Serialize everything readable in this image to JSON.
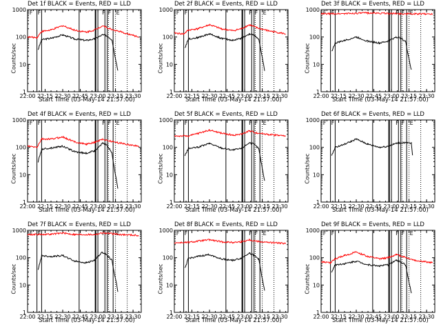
{
  "chart_data": [
    {
      "type": "line",
      "title": "Det 1f BLACK = Events, RED = LLD",
      "xlabel": "Start Time (03-May-14 21:57:00)",
      "ylabel": "Counts/sec",
      "xlim": [
        "22:00",
        "23:37"
      ],
      "ylim": [
        1,
        1000
      ],
      "yscale": "log",
      "x_ticks": [
        "22:00",
        "22:15",
        "22:30",
        "22:45",
        "23:00",
        "23:15",
        "23:30"
      ],
      "y_ticks": [
        "1",
        "10",
        "100",
        "1000"
      ],
      "markers": [
        "F",
        "F",
        "F",
        "F",
        "E"
      ],
      "series": [
        {
          "name": "Events",
          "color": "#000000",
          "x": [
            "22:09",
            "22:12",
            "22:20",
            "22:30",
            "22:40",
            "22:50",
            "22:57",
            "23:04",
            "23:08",
            "23:12",
            "23:17"
          ],
          "values": [
            35,
            80,
            90,
            120,
            85,
            75,
            85,
            120,
            110,
            80,
            6
          ]
        },
        {
          "name": "LLD",
          "color": "#ff0000",
          "x": [
            "22:00",
            "22:08",
            "22:12",
            "22:20",
            "22:30",
            "22:40",
            "22:50",
            "22:57",
            "23:04",
            "23:10",
            "23:20",
            "23:35"
          ],
          "values": [
            100,
            95,
            160,
            180,
            260,
            180,
            150,
            180,
            260,
            200,
            150,
            100
          ]
        }
      ]
    },
    {
      "type": "line",
      "title": "Det 2f BLACK = Events, RED = LLD",
      "xlabel": "Start Time (03-May-14 21:57:00)",
      "ylabel": "Counts/sec",
      "xlim": [
        "22:00",
        "23:37"
      ],
      "ylim": [
        1,
        1000
      ],
      "yscale": "log",
      "x_ticks": [
        "22:00",
        "22:15",
        "22:30",
        "22:45",
        "23:00",
        "23:15",
        "23:30"
      ],
      "y_ticks": [
        "1",
        "10",
        "100",
        "1000"
      ],
      "markers": [
        "F",
        "F",
        "F",
        "F",
        "E"
      ],
      "series": [
        {
          "name": "Events",
          "color": "#000000",
          "x": [
            "22:09",
            "22:12",
            "22:20",
            "22:30",
            "22:40",
            "22:50",
            "22:57",
            "23:04",
            "23:08",
            "23:12",
            "23:17"
          ],
          "values": [
            40,
            85,
            95,
            130,
            90,
            75,
            90,
            130,
            115,
            85,
            6
          ]
        },
        {
          "name": "LLD",
          "color": "#ff0000",
          "x": [
            "22:00",
            "22:08",
            "22:12",
            "22:20",
            "22:30",
            "22:40",
            "22:50",
            "22:57",
            "23:04",
            "23:10",
            "23:20",
            "23:35"
          ],
          "values": [
            140,
            130,
            180,
            200,
            280,
            200,
            170,
            200,
            280,
            220,
            170,
            130
          ]
        }
      ]
    },
    {
      "type": "line",
      "title": "Det 3f BLACK = Events, RED = LLD",
      "xlabel": "Start Time (03-May-14 21:57:00)",
      "ylabel": "Counts/sec",
      "xlim": [
        "22:00",
        "23:37"
      ],
      "ylim": [
        1,
        1000
      ],
      "yscale": "log",
      "x_ticks": [
        "22:00",
        "22:15",
        "22:30",
        "22:45",
        "23:00",
        "23:15",
        "23:30"
      ],
      "y_ticks": [
        "1",
        "10",
        "100",
        "1000"
      ],
      "markers": [
        "F",
        "F",
        "F",
        "F",
        "E"
      ],
      "series": [
        {
          "name": "Events",
          "color": "#000000",
          "x": [
            "22:09",
            "22:12",
            "22:20",
            "22:30",
            "22:40",
            "22:50",
            "22:57",
            "23:04",
            "23:08",
            "23:12",
            "23:17"
          ],
          "values": [
            30,
            60,
            75,
            100,
            70,
            60,
            70,
            100,
            90,
            70,
            6
          ]
        },
        {
          "name": "LLD",
          "color": "#ff0000",
          "x": [
            "22:00",
            "22:20",
            "22:40",
            "23:00",
            "23:20",
            "23:35"
          ],
          "values": [
            700,
            720,
            760,
            720,
            700,
            700
          ]
        }
      ]
    },
    {
      "type": "line",
      "title": "Det 4f BLACK = Events, RED = LLD",
      "xlabel": "Start Time (03-May-14 21:57:00)",
      "ylabel": "Counts/sec",
      "xlim": [
        "22:00",
        "23:37"
      ],
      "ylim": [
        1,
        1000
      ],
      "yscale": "log",
      "x_ticks": [
        "22:00",
        "22:15",
        "22:30",
        "22:45",
        "23:00",
        "23:15",
        "23:30"
      ],
      "y_ticks": [
        "1",
        "10",
        "100",
        "1000"
      ],
      "markers": [
        "F",
        "F",
        "F",
        "F",
        "E"
      ],
      "series": [
        {
          "name": "Events",
          "color": "#000000",
          "x": [
            "22:09",
            "22:12",
            "22:20",
            "22:30",
            "22:40",
            "22:50",
            "22:57",
            "23:04",
            "23:08",
            "23:12",
            "23:17"
          ],
          "values": [
            30,
            85,
            95,
            110,
            70,
            60,
            75,
            140,
            120,
            60,
            3
          ]
        },
        {
          "name": "LLD",
          "color": "#ff0000",
          "x": [
            "22:00",
            "22:08",
            "22:12",
            "22:20",
            "22:30",
            "22:40",
            "22:50",
            "22:57",
            "23:04",
            "23:10",
            "23:20",
            "23:35"
          ],
          "values": [
            110,
            100,
            200,
            200,
            240,
            160,
            130,
            150,
            200,
            170,
            140,
            110
          ]
        }
      ]
    },
    {
      "type": "line",
      "title": "Det 5f BLACK = Events, RED = LLD",
      "xlabel": "Start Time (03-May-14 21:57:00)",
      "ylabel": "Counts/sec",
      "xlim": [
        "22:00",
        "23:37"
      ],
      "ylim": [
        1,
        1000
      ],
      "yscale": "log",
      "x_ticks": [
        "22:00",
        "22:15",
        "22:30",
        "22:45",
        "23:00",
        "23:15",
        "23:30"
      ],
      "y_ticks": [
        "1",
        "10",
        "100",
        "1000"
      ],
      "markers": [
        "F",
        "F",
        "F",
        "F",
        "E"
      ],
      "series": [
        {
          "name": "Events",
          "color": "#000000",
          "x": [
            "22:09",
            "22:12",
            "22:20",
            "22:30",
            "22:40",
            "22:50",
            "22:57",
            "23:04",
            "23:08",
            "23:12",
            "23:17"
          ],
          "values": [
            50,
            90,
            100,
            140,
            95,
            80,
            90,
            150,
            130,
            90,
            6
          ]
        },
        {
          "name": "LLD",
          "color": "#ff0000",
          "x": [
            "22:00",
            "22:12",
            "22:20",
            "22:30",
            "22:40",
            "22:50",
            "22:57",
            "23:04",
            "23:10",
            "23:20",
            "23:35"
          ],
          "values": [
            260,
            260,
            320,
            430,
            330,
            280,
            300,
            400,
            340,
            300,
            260
          ]
        }
      ]
    },
    {
      "type": "line",
      "title": "Det 6f BLACK = Events, RED = LLD",
      "xlabel": "Start Time (03-May-14 21:57:00)",
      "ylabel": "Counts/sec",
      "xlim": [
        "22:00",
        "23:37"
      ],
      "ylim": [
        1,
        1000
      ],
      "yscale": "log",
      "x_ticks": [
        "22:00",
        "22:15",
        "22:30",
        "22:45",
        "23:00",
        "23:15",
        "23:30"
      ],
      "y_ticks": [
        "1",
        "10",
        "100",
        "1000"
      ],
      "markers": [
        "F",
        "F",
        "F",
        "F",
        "E"
      ],
      "series": [
        {
          "name": "Events",
          "color": "#000000",
          "x": [
            "22:09",
            "22:12",
            "22:20",
            "22:30",
            "22:40",
            "22:50",
            "22:57",
            "23:04",
            "23:10",
            "23:17",
            "23:18"
          ],
          "values": [
            50,
            100,
            130,
            200,
            130,
            100,
            110,
            140,
            150,
            140,
            50
          ]
        },
        {
          "name": "LLD",
          "color": "#ff0000",
          "x": [],
          "values": []
        }
      ]
    },
    {
      "type": "line",
      "title": "Det 7f BLACK = Events, RED = LLD",
      "xlabel": "Start Time (03-May-14 21:57:00)",
      "ylabel": "Counts/sec",
      "xlim": [
        "22:00",
        "23:37"
      ],
      "ylim": [
        1,
        1000
      ],
      "yscale": "log",
      "x_ticks": [
        "22:00",
        "22:15",
        "22:30",
        "22:45",
        "23:00",
        "23:15",
        "23:30"
      ],
      "y_ticks": [
        "1",
        "10",
        "100",
        "1000"
      ],
      "markers": [
        "F",
        "F",
        "F",
        "F",
        "E"
      ],
      "series": [
        {
          "name": "Events",
          "color": "#000000",
          "x": [
            "22:09",
            "22:12",
            "22:20",
            "22:30",
            "22:40",
            "22:50",
            "22:57",
            "23:04",
            "23:08",
            "23:12",
            "23:17"
          ],
          "values": [
            35,
            120,
            110,
            120,
            75,
            65,
            80,
            160,
            120,
            80,
            6
          ]
        },
        {
          "name": "LLD",
          "color": "#ff0000",
          "x": [
            "22:00",
            "22:20",
            "22:30",
            "22:40",
            "22:57",
            "23:04",
            "23:20",
            "23:35"
          ],
          "values": [
            700,
            720,
            800,
            700,
            700,
            800,
            700,
            650
          ]
        }
      ]
    },
    {
      "type": "line",
      "title": "Det 8f BLACK = Events, RED = LLD",
      "xlabel": "Start Time (03-May-14 21:57:00)",
      "ylabel": "Counts/sec",
      "xlim": [
        "22:00",
        "23:37"
      ],
      "ylim": [
        1,
        1000
      ],
      "yscale": "log",
      "x_ticks": [
        "22:00",
        "22:15",
        "22:30",
        "22:45",
        "23:00",
        "23:15",
        "23:30"
      ],
      "y_ticks": [
        "1",
        "10",
        "100",
        "1000"
      ],
      "markers": [
        "F",
        "F",
        "F",
        "F",
        "E"
      ],
      "series": [
        {
          "name": "Events",
          "color": "#000000",
          "x": [
            "22:09",
            "22:12",
            "22:20",
            "22:30",
            "22:40",
            "22:50",
            "22:57",
            "23:04",
            "23:08",
            "23:12",
            "23:17"
          ],
          "values": [
            40,
            95,
            110,
            130,
            90,
            80,
            95,
            150,
            120,
            90,
            6
          ]
        },
        {
          "name": "LLD",
          "color": "#ff0000",
          "x": [
            "22:00",
            "22:12",
            "22:20",
            "22:30",
            "22:40",
            "22:50",
            "22:57",
            "23:04",
            "23:10",
            "23:20",
            "23:35"
          ],
          "values": [
            350,
            360,
            400,
            450,
            380,
            360,
            380,
            450,
            400,
            360,
            330
          ]
        }
      ]
    },
    {
      "type": "line",
      "title": "Det 9f BLACK = Events, RED = LLD",
      "xlabel": "Start Time (03-May-14 21:57:00)",
      "ylabel": "Counts/sec",
      "xlim": [
        "22:00",
        "23:37"
      ],
      "ylim": [
        1,
        1000
      ],
      "yscale": "log",
      "x_ticks": [
        "22:00",
        "22:15",
        "22:30",
        "22:45",
        "23:00",
        "23:15",
        "23:30"
      ],
      "y_ticks": [
        "1",
        "10",
        "100",
        "1000"
      ],
      "markers": [
        "F",
        "F",
        "F",
        "F",
        "E"
      ],
      "series": [
        {
          "name": "Events",
          "color": "#000000",
          "x": [
            "22:09",
            "22:12",
            "22:20",
            "22:30",
            "22:40",
            "22:50",
            "22:57",
            "23:04",
            "23:08",
            "23:12",
            "23:17"
          ],
          "values": [
            30,
            55,
            60,
            75,
            55,
            50,
            55,
            80,
            70,
            55,
            5
          ]
        },
        {
          "name": "LLD",
          "color": "#ff0000",
          "x": [
            "22:00",
            "22:08",
            "22:12",
            "22:20",
            "22:30",
            "22:40",
            "22:50",
            "22:57",
            "23:04",
            "23:10",
            "23:20",
            "23:35"
          ],
          "values": [
            70,
            65,
            90,
            120,
            160,
            110,
            90,
            100,
            130,
            110,
            80,
            65
          ]
        }
      ]
    }
  ]
}
